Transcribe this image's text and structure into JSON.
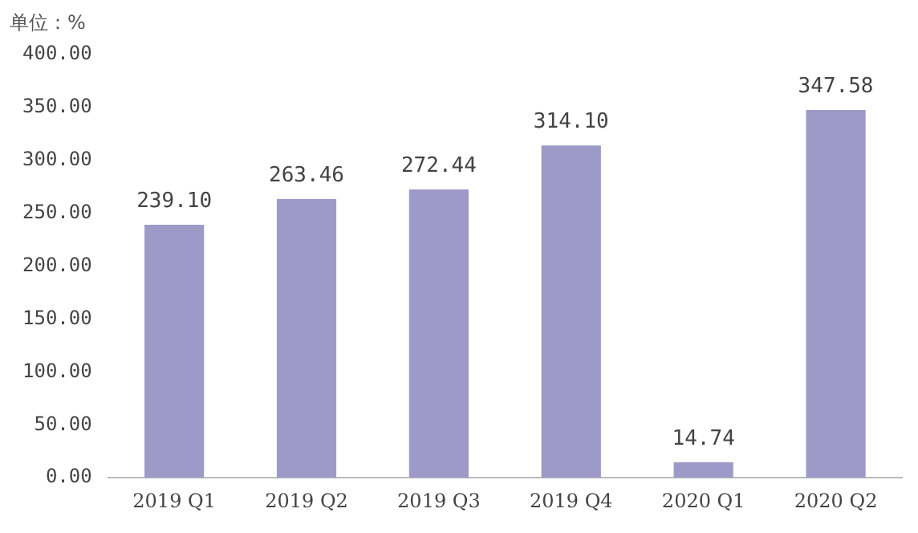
{
  "chart_data": {
    "type": "bar",
    "ylabel": "单位：%",
    "categories": [
      "2019 Q1",
      "2019 Q2",
      "2019 Q3",
      "2019 Q4",
      "2020 Q1",
      "2020 Q2"
    ],
    "values": [
      239.1,
      263.46,
      272.44,
      314.1,
      14.74,
      347.58
    ],
    "value_labels": [
      "239.10",
      "263.46",
      "272.44",
      "314.10",
      "14.74",
      "347.58"
    ],
    "color": "#9d9ac8",
    "ylim": [
      0,
      400
    ],
    "yticks": [
      {
        "value": 0,
        "label": "0.00"
      },
      {
        "value": 50,
        "label": "50.00"
      },
      {
        "value": 100,
        "label": "100.00"
      },
      {
        "value": 150,
        "label": "150.00"
      },
      {
        "value": 200,
        "label": "200.00"
      },
      {
        "value": 250,
        "label": "250.00"
      },
      {
        "value": 300,
        "label": "300.00"
      },
      {
        "value": 350,
        "label": "350.00"
      },
      {
        "value": 400,
        "label": "400.00"
      }
    ],
    "grid": false
  }
}
